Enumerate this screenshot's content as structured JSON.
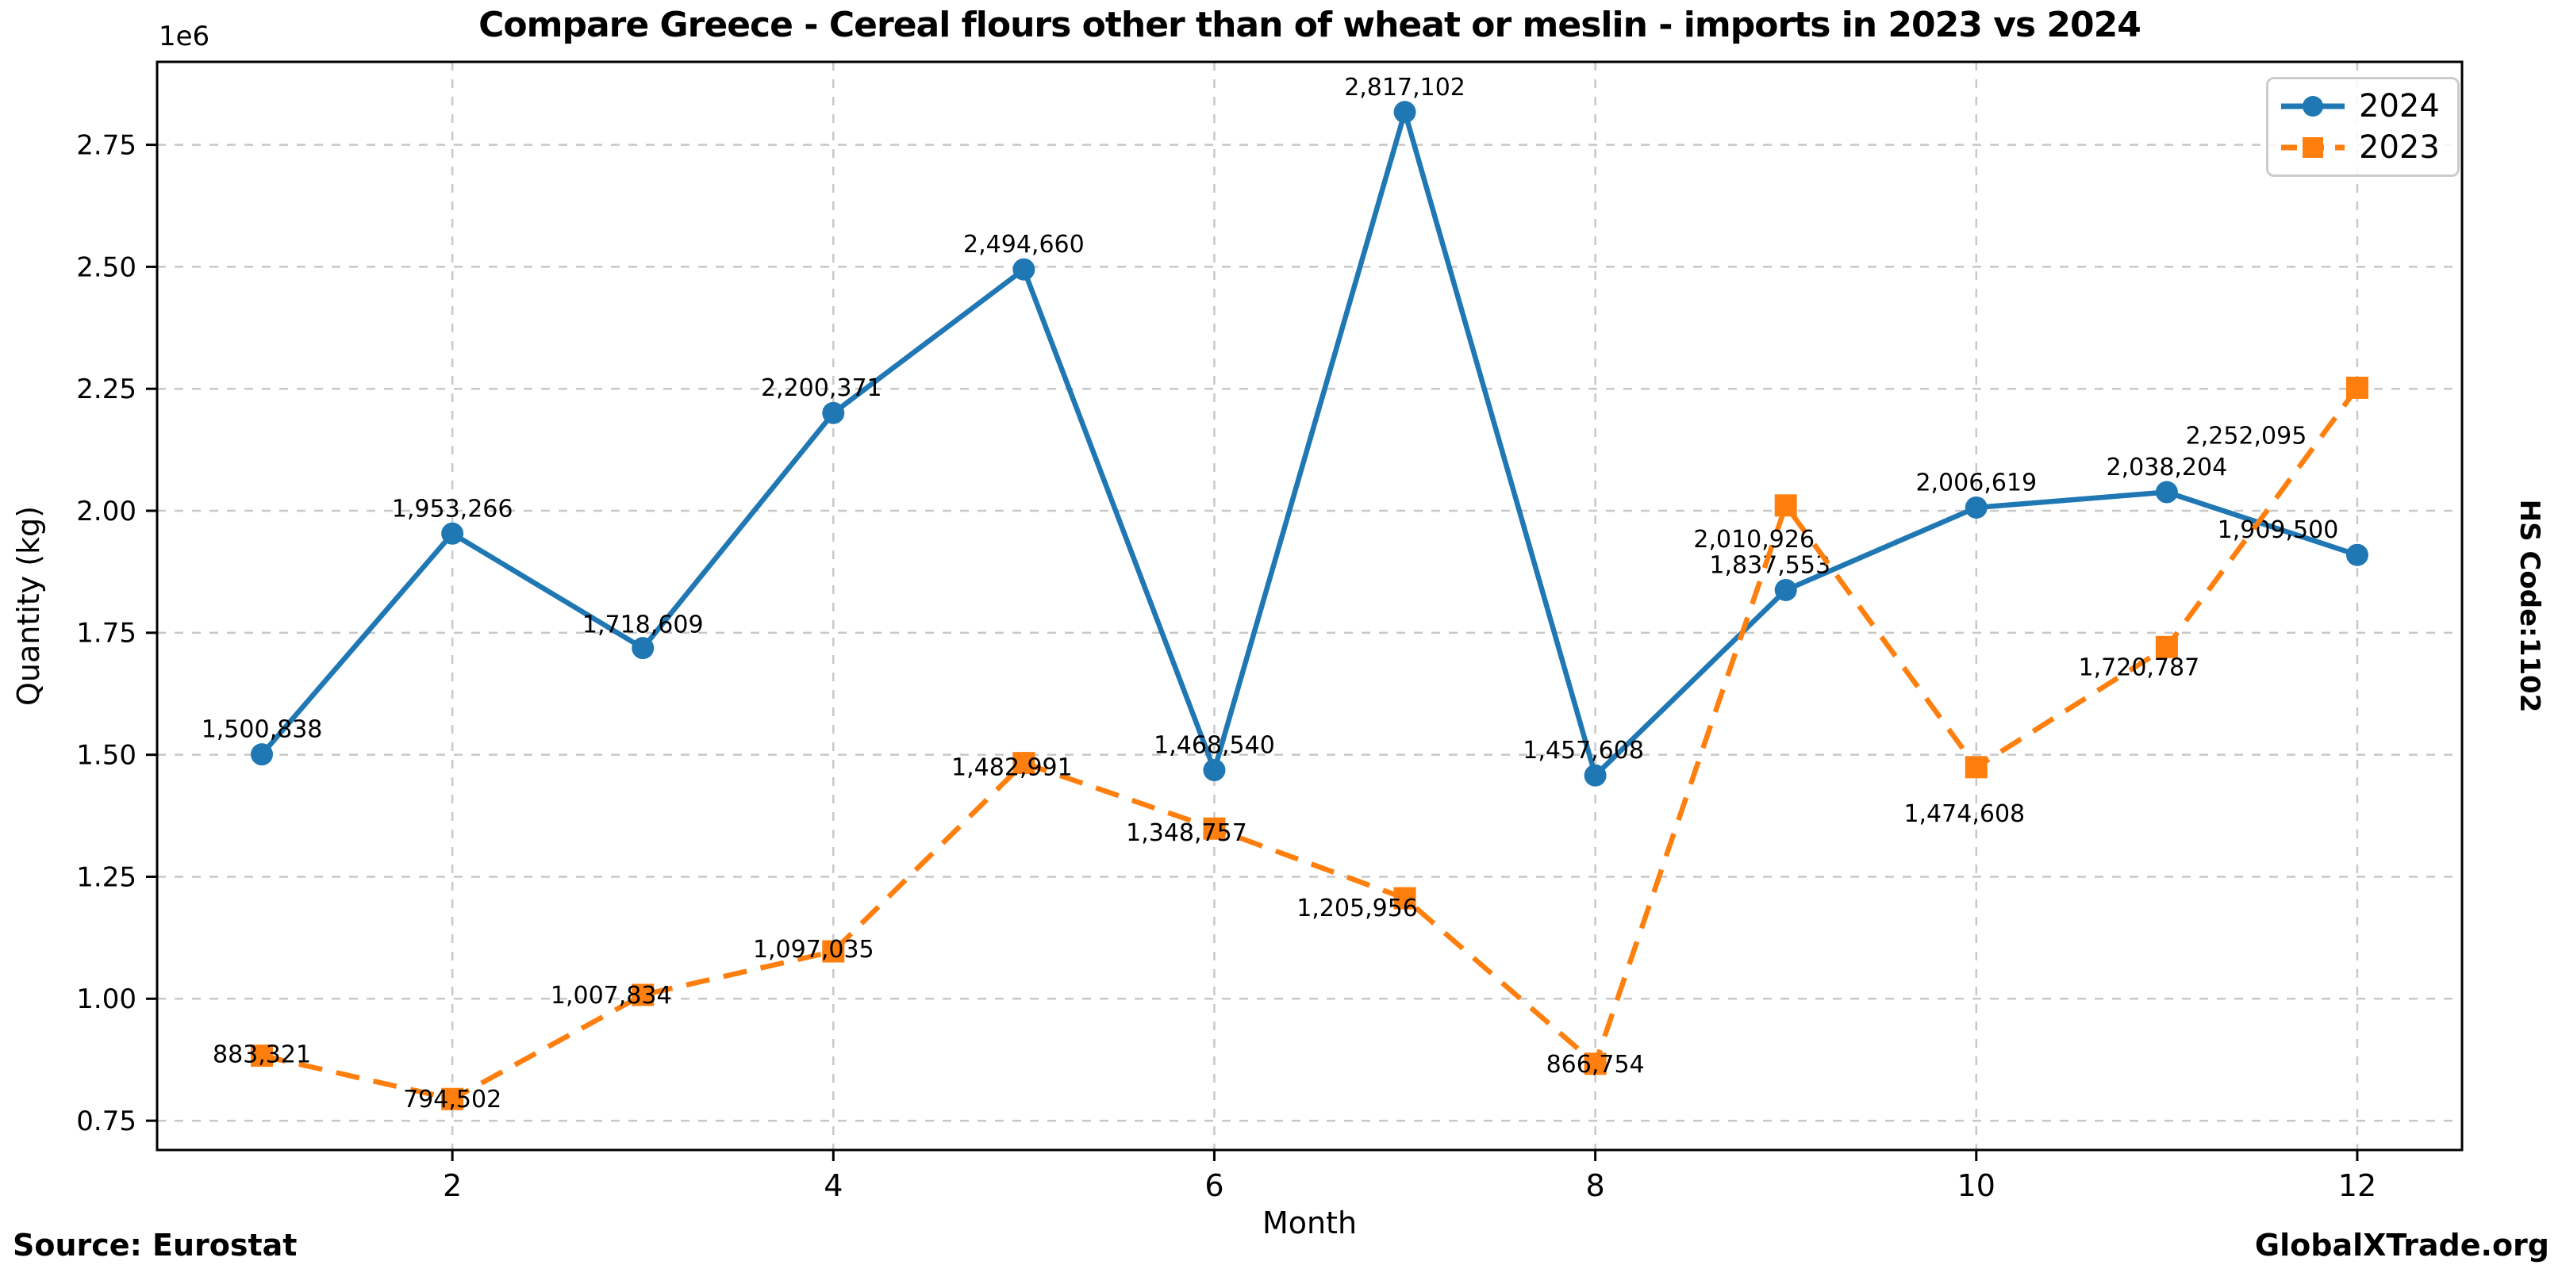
{
  "figure": {
    "title": "Compare Greece - Cereal flours other than of wheat or meslin - imports in 2023 vs 2024",
    "source": "Source: Eurostat",
    "brand": "GlobalXTrade.org",
    "right_label": "HS Code:1102"
  },
  "chart_data": {
    "type": "line",
    "title": "Compare Greece - Cereal flours other than of wheat or meslin - imports in 2023 vs 2024",
    "xlabel": "Month",
    "ylabel": "Quantity (kg)",
    "y_offset_text": "1e6",
    "grid": true,
    "legend_position": "upper right",
    "x": [
      1,
      2,
      3,
      4,
      5,
      6,
      7,
      8,
      9,
      10,
      11,
      12
    ],
    "xticks": [
      2,
      4,
      6,
      8,
      10,
      12
    ],
    "yticks": [
      750000,
      1000000,
      1250000,
      1500000,
      1750000,
      2000000,
      2250000,
      2500000,
      2750000
    ],
    "ytick_labels": [
      "0.75",
      "1.00",
      "1.25",
      "1.50",
      "1.75",
      "2.00",
      "2.25",
      "2.50",
      "2.75"
    ],
    "xlim": [
      0.45,
      12.55
    ],
    "ylim": [
      690000,
      2920000
    ],
    "grid_color": "#c8c8c8",
    "series": [
      {
        "name": "2024",
        "color": "#1f77b4",
        "marker": "circle",
        "linestyle": "solid",
        "values": [
          1500838,
          1953266,
          1718609,
          2200371,
          2494660,
          1468540,
          2817102,
          1457608,
          1837553,
          2006619,
          2038204,
          1909500
        ],
        "labels": [
          "1,500,838",
          "1,953,266",
          "1,718,609",
          "2,200,371",
          "2,494,660",
          "1,468,540",
          "2,817,102",
          "1,457,608",
          "1,837,553",
          "2,006,619",
          "2,038,204",
          "1,909,500"
        ],
        "label_offsets": [
          [
            0,
            -32
          ],
          [
            0,
            -32
          ],
          [
            0,
            -30
          ],
          [
            -15,
            -32
          ],
          [
            0,
            -32
          ],
          [
            0,
            -32
          ],
          [
            0,
            -32
          ],
          [
            -15,
            -32
          ],
          [
            -20,
            -32
          ],
          [
            0,
            -32
          ],
          [
            0,
            -32
          ],
          [
            -100,
            -32
          ]
        ]
      },
      {
        "name": "2023",
        "color": "#ff7f0e",
        "marker": "square",
        "linestyle": "dashed",
        "values": [
          883321,
          794502,
          1007834,
          1097035,
          1482991,
          1348757,
          1205956,
          866754,
          2010926,
          1474608,
          1720787,
          2252095
        ],
        "labels": [
          "883,321",
          "794,502",
          "1,007,834",
          "1,097,035",
          "1,482,991",
          "1,348,757",
          "1,205,956",
          "866,754",
          "2,010,926",
          "1,474,608",
          "1,720,787",
          "2,252,095"
        ],
        "label_offsets": [
          [
            0,
            -2
          ],
          [
            0,
            0
          ],
          [
            -40,
            0
          ],
          [
            -25,
            -3
          ],
          [
            -15,
            5
          ],
          [
            -35,
            5
          ],
          [
            -60,
            12
          ],
          [
            0,
            0
          ],
          [
            -40,
            42
          ],
          [
            -15,
            58
          ],
          [
            -35,
            25
          ],
          [
            -140,
            60
          ]
        ]
      }
    ]
  }
}
